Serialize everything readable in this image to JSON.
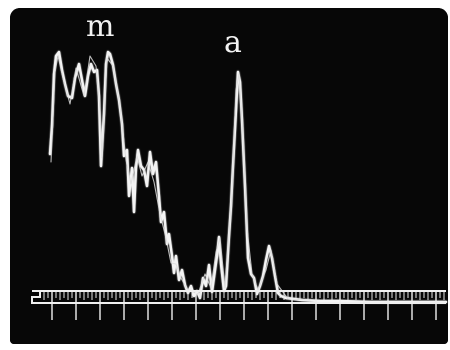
{
  "labels": {
    "m": "m",
    "a": "a"
  },
  "colors": {
    "background": "#070707",
    "trace": "#f4f4f4",
    "scale": "#e8e8e8"
  }
}
